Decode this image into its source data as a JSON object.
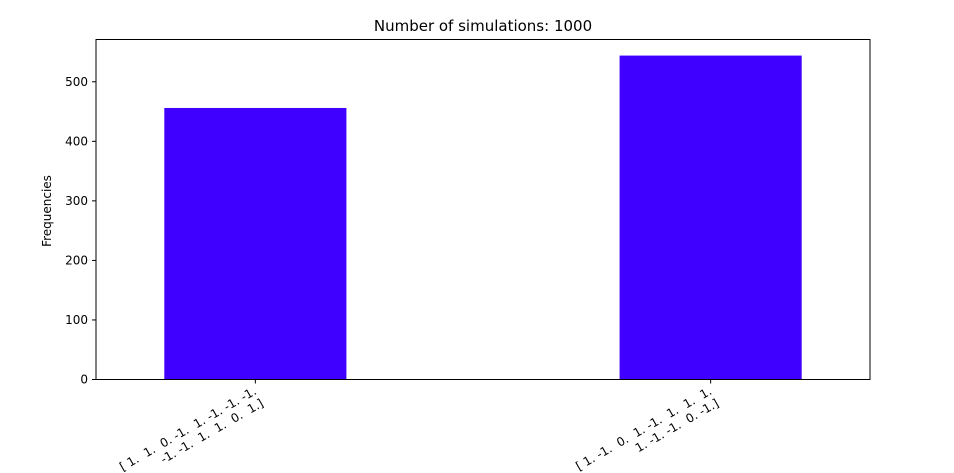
{
  "chart_data": {
    "type": "bar",
    "title": "Number of simulations: 1000",
    "xlabel": "",
    "ylabel": "Frequencies",
    "categories": [
      [
        "[ 1.  1.  0. -1.  1. -1. -1. -1.",
        " -1. -1.  1.  1.  0.  1.]"
      ],
      [
        "[ 1. -1.  0.  1. -1.  1.  1.  1.",
        "  1. -1. -1.  0. -1.]"
      ]
    ],
    "values": [
      456,
      544
    ],
    "ylim": [
      0,
      571
    ],
    "yticks": [
      0,
      100,
      200,
      300,
      400,
      500
    ],
    "bar_color": "#4000ff",
    "grid": false
  }
}
